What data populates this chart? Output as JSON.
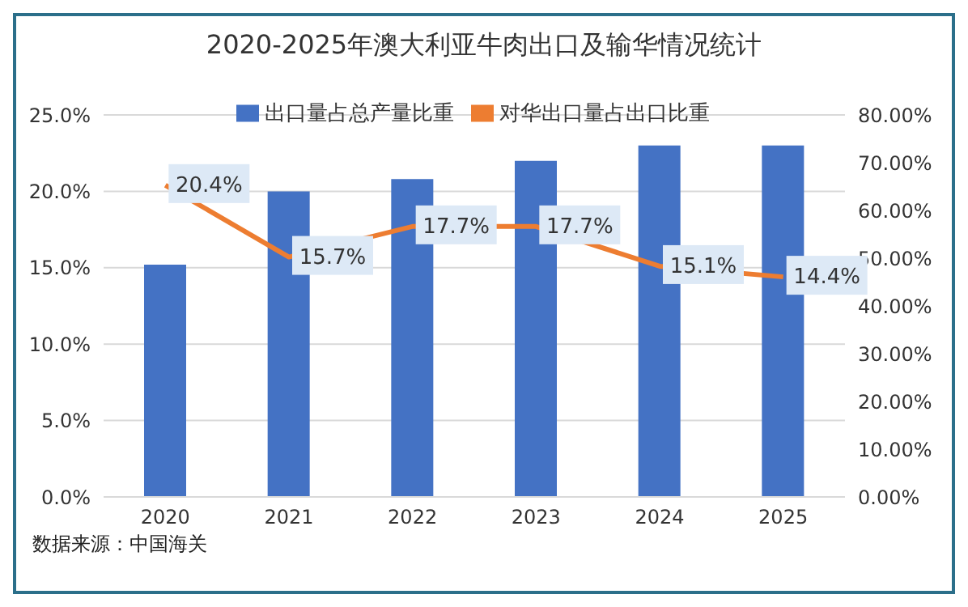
{
  "chart_data": {
    "type": "bar",
    "title": "2020-2025年澳大利亚牛肉出口及输华情况统计",
    "categories": [
      "2020",
      "2021",
      "2022",
      "2023",
      "2024",
      "2025"
    ],
    "series": [
      {
        "name": "出口量占总产量比重",
        "color": "#4472c4",
        "values": [
          15.2,
          20.0,
          20.8,
          22.0,
          23.0,
          23.0
        ]
      },
      {
        "name": "对华出口量占出口比重",
        "color": "#ed7d31",
        "type": "line",
        "values": [
          20.4,
          15.7,
          17.7,
          17.7,
          15.1,
          14.4
        ],
        "value_labels": [
          "20.4%",
          "15.7%",
          "17.7%",
          "17.7%",
          "15.1%",
          "14.4%"
        ]
      }
    ],
    "ylim": [
      0,
      25
    ],
    "yticks": [
      {
        "value": 0,
        "label": "0.0%"
      },
      {
        "value": 5,
        "label": "5.0%"
      },
      {
        "value": 10,
        "label": "10.0%"
      },
      {
        "value": 15,
        "label": "15.0%"
      },
      {
        "value": 20,
        "label": "20.0%"
      },
      {
        "value": 25,
        "label": "25.0%"
      }
    ],
    "y2lim": [
      0,
      80
    ],
    "y2ticks": [
      {
        "value": 0,
        "label": "0.00%"
      },
      {
        "value": 10,
        "label": "10.00%"
      },
      {
        "value": 20,
        "label": "20.00%"
      },
      {
        "value": 30,
        "label": "30.00%"
      },
      {
        "value": 40,
        "label": "40.00%"
      },
      {
        "value": 50,
        "label": "50.00%"
      },
      {
        "value": 60,
        "label": "60.00%"
      },
      {
        "value": 70,
        "label": "70.00%"
      },
      {
        "value": 80,
        "label": "80.00%"
      }
    ],
    "grid": "y",
    "legend": "top",
    "marker": "none",
    "line_style": "solid",
    "annotations": [
      "数据来源：中国海关"
    ]
  }
}
